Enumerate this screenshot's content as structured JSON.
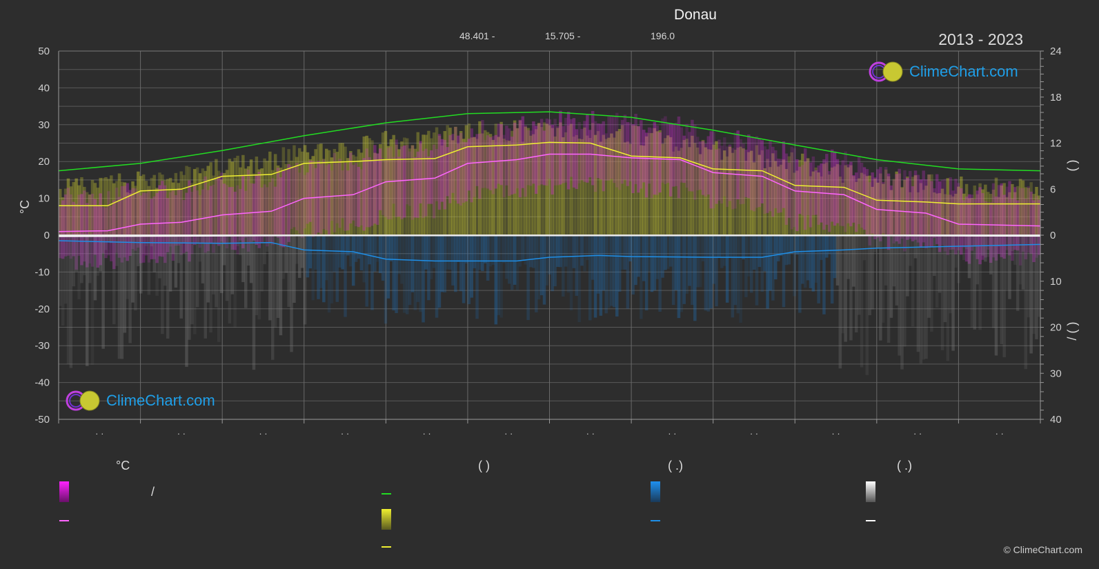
{
  "header": {
    "title": "Donau",
    "lat": "48.401 -",
    "lon": "15.705 -",
    "elevation": "196.0",
    "period": "2013 - 2023"
  },
  "logo": {
    "text": "ClimeChart.com"
  },
  "copyright": "© ClimeChart.com",
  "legend": {
    "col1_header": "°C",
    "col1_slash": "/",
    "col2_header": "(          )",
    "col3_header": "(   .)",
    "col4_header": "(   .)"
  },
  "colors": {
    "background": "#2d2d2d",
    "temp_band": "#d02bd4",
    "temp_line": "#ff66ff",
    "daylight_line": "#22dd22",
    "sunshine_band": "#c8c832",
    "sunshine_line": "#f0f032",
    "rain_band": "#1e78c8",
    "rain_line": "#1e8fe8",
    "snow_band": "#888888",
    "snow_line": "#ffffff"
  },
  "chart_data": {
    "type": "line",
    "title": "Donau",
    "y_left": {
      "label": "°C",
      "range": [
        -50,
        50
      ],
      "ticks": [
        50,
        40,
        30,
        20,
        10,
        0,
        -10,
        -20,
        -30,
        -40,
        -50
      ]
    },
    "y_right_top": {
      "label": "(   )",
      "range": [
        0,
        24
      ],
      "ticks": [
        24,
        18,
        12,
        6,
        0
      ]
    },
    "y_right_bottom": {
      "label": "/ (   )",
      "range": [
        0,
        40
      ],
      "ticks": [
        10,
        20,
        30,
        40
      ]
    },
    "x": {
      "months": 12,
      "tick_labels": [
        "· ·",
        "· ·",
        "· ·",
        "· ·",
        "· ·",
        "· ·",
        "· ·",
        "· ·",
        "· ·",
        "· ·",
        "· ·",
        "· ·"
      ]
    },
    "grid": true,
    "series": [
      {
        "key": "daylight",
        "points": [
          [
            0,
            17.5
          ],
          [
            1,
            19.5
          ],
          [
            2,
            23
          ],
          [
            3,
            27
          ],
          [
            4,
            30.5
          ],
          [
            5,
            33
          ],
          [
            6,
            33.5
          ],
          [
            7,
            32
          ],
          [
            8,
            28.5
          ],
          [
            9,
            24.5
          ],
          [
            10,
            20.5
          ],
          [
            11,
            18
          ],
          [
            12,
            17.5
          ]
        ]
      },
      {
        "key": "sunshine",
        "points": [
          [
            0,
            8
          ],
          [
            0.6,
            8
          ],
          [
            1,
            12
          ],
          [
            1.5,
            12.5
          ],
          [
            2,
            16
          ],
          [
            2.6,
            16.5
          ],
          [
            3,
            19.5
          ],
          [
            3.6,
            20
          ],
          [
            4,
            20.5
          ],
          [
            4.6,
            20.8
          ],
          [
            5,
            24
          ],
          [
            5.6,
            24.5
          ],
          [
            6,
            25.2
          ],
          [
            6.5,
            25
          ],
          [
            7,
            21.5
          ],
          [
            7.6,
            21
          ],
          [
            8,
            18
          ],
          [
            8.6,
            17.5
          ],
          [
            9,
            13.5
          ],
          [
            9.6,
            13
          ],
          [
            10,
            9.5
          ],
          [
            10.6,
            9
          ],
          [
            11,
            8.5
          ],
          [
            12,
            8.5
          ]
        ]
      },
      {
        "key": "temp_avg",
        "points": [
          [
            0,
            1
          ],
          [
            0.6,
            1.2
          ],
          [
            1,
            3
          ],
          [
            1.5,
            3.5
          ],
          [
            2,
            5.5
          ],
          [
            2.6,
            6.5
          ],
          [
            3,
            10
          ],
          [
            3.6,
            11
          ],
          [
            4,
            14.5
          ],
          [
            4.6,
            15.5
          ],
          [
            5,
            19.5
          ],
          [
            5.6,
            20.5
          ],
          [
            6,
            22
          ],
          [
            6.5,
            22
          ],
          [
            7,
            21
          ],
          [
            7.6,
            20.5
          ],
          [
            8,
            17
          ],
          [
            8.6,
            16
          ],
          [
            9,
            12
          ],
          [
            9.6,
            11
          ],
          [
            10,
            7
          ],
          [
            10.6,
            6
          ],
          [
            11,
            3
          ],
          [
            12,
            2.5
          ]
        ]
      },
      {
        "key": "rain",
        "points": [
          [
            0,
            -1.5
          ],
          [
            1,
            -2
          ],
          [
            2,
            -2.2
          ],
          [
            2.6,
            -2
          ],
          [
            3,
            -4
          ],
          [
            3.6,
            -4.5
          ],
          [
            4,
            -6.5
          ],
          [
            4.6,
            -7
          ],
          [
            5,
            -7
          ],
          [
            5.6,
            -7
          ],
          [
            6,
            -6
          ],
          [
            6.6,
            -5.5
          ],
          [
            7,
            -5.8
          ],
          [
            8,
            -6
          ],
          [
            8.6,
            -6
          ],
          [
            9,
            -4.5
          ],
          [
            9.6,
            -4
          ],
          [
            10,
            -3.5
          ],
          [
            11,
            -3
          ],
          [
            12,
            -2.5
          ]
        ]
      },
      {
        "key": "snow",
        "points": [
          [
            0,
            -0.3
          ],
          [
            3,
            -0.1
          ],
          [
            10,
            -0.1
          ],
          [
            12,
            -0.2
          ]
        ]
      }
    ]
  }
}
